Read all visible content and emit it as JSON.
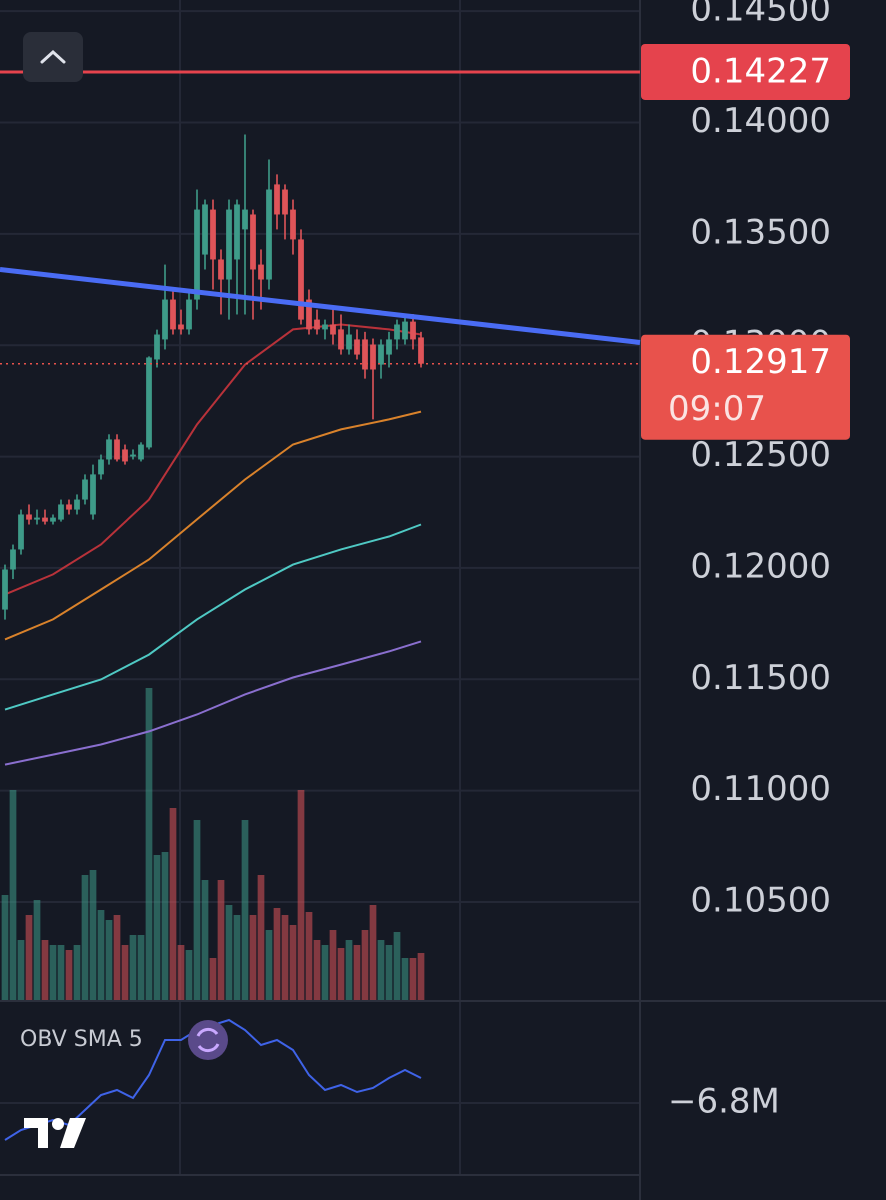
{
  "chart_data": {
    "type": "candlestick",
    "xlim": [
      -0.625,
      79.375
    ],
    "ylim": [
      0.1006,
      0.1455
    ],
    "yticks": [
      {
        "value": 0.145,
        "label": "0.14500"
      },
      {
        "value": 0.14,
        "label": "0.14000"
      },
      {
        "value": 0.135,
        "label": "0.13500"
      },
      {
        "value": 0.13,
        "label": "0.13000"
      },
      {
        "value": 0.125,
        "label": "0.12500"
      },
      {
        "value": 0.12,
        "label": "0.12000"
      },
      {
        "value": 0.115,
        "label": "0.11500"
      },
      {
        "value": 0.11,
        "label": "0.11000"
      },
      {
        "value": 0.105,
        "label": "0.10500"
      }
    ],
    "grid": true,
    "up_color": "#3e9b89",
    "down_color": "#df5459",
    "ohlc": [
      [
        0.11813,
        0.12015,
        0.11768,
        0.11993
      ],
      [
        0.11993,
        0.12105,
        0.1195,
        0.12083
      ],
      [
        0.12083,
        0.12262,
        0.1206,
        0.1224
      ],
      [
        0.1224,
        0.12285,
        0.12195,
        0.12217
      ],
      [
        0.12217,
        0.12262,
        0.12195,
        0.12226
      ],
      [
        0.12226,
        0.12262,
        0.12195,
        0.12208
      ],
      [
        0.12208,
        0.1224,
        0.12195,
        0.12226
      ],
      [
        0.12217,
        0.12307,
        0.12208,
        0.12285
      ],
      [
        0.12285,
        0.12307,
        0.1224,
        0.12262
      ],
      [
        0.12262,
        0.1233,
        0.1224,
        0.12307
      ],
      [
        0.12307,
        0.1242,
        0.12285,
        0.12397
      ],
      [
        0.1224,
        0.12464,
        0.12217,
        0.1242
      ],
      [
        0.1242,
        0.12509,
        0.12397,
        0.12487
      ],
      [
        0.12487,
        0.126,
        0.12464,
        0.12577
      ],
      [
        0.12577,
        0.126,
        0.12478,
        0.12487
      ],
      [
        0.12532,
        0.12554,
        0.12464,
        0.12478
      ],
      [
        0.125,
        0.12532,
        0.12487,
        0.12509
      ],
      [
        0.12487,
        0.12564,
        0.12478,
        0.12554
      ],
      [
        0.12541,
        0.1295,
        0.12532,
        0.12945
      ],
      [
        0.12936,
        0.1307,
        0.129,
        0.13048
      ],
      [
        0.13026,
        0.13362,
        0.12981,
        0.13205
      ],
      [
        0.13205,
        0.1325,
        0.13048,
        0.13071
      ],
      [
        0.13093,
        0.1316,
        0.13048,
        0.13071
      ],
      [
        0.13071,
        0.1325,
        0.13048,
        0.13205
      ],
      [
        0.13205,
        0.13699,
        0.1316,
        0.13609
      ],
      [
        0.13407,
        0.13654,
        0.1334,
        0.13632
      ],
      [
        0.13609,
        0.13654,
        0.1325,
        0.13385
      ],
      [
        0.13385,
        0.1343,
        0.13138,
        0.13295
      ],
      [
        0.13295,
        0.13654,
        0.13115,
        0.13609
      ],
      [
        0.13385,
        0.13654,
        0.13138,
        0.13632
      ],
      [
        0.1352,
        0.13946,
        0.13138,
        0.13609
      ],
      [
        0.13587,
        0.13609,
        0.13115,
        0.1334
      ],
      [
        0.13362,
        0.1343,
        0.1316,
        0.13295
      ],
      [
        0.13295,
        0.13834,
        0.1325,
        0.13699
      ],
      [
        0.13722,
        0.13767,
        0.1352,
        0.13587
      ],
      [
        0.13699,
        0.13722,
        0.13475,
        0.13587
      ],
      [
        0.13609,
        0.13654,
        0.13407,
        0.13475
      ],
      [
        0.13475,
        0.1352,
        0.13093,
        0.13115
      ],
      [
        0.13205,
        0.1325,
        0.13048,
        0.13071
      ],
      [
        0.13115,
        0.1316,
        0.13048,
        0.13071
      ],
      [
        0.13071,
        0.13115,
        0.13026,
        0.13093
      ],
      [
        0.13093,
        0.1316,
        0.13003,
        0.13048
      ],
      [
        0.13071,
        0.13138,
        0.12958,
        0.12981
      ],
      [
        0.12981,
        0.13093,
        0.12958,
        0.13048
      ],
      [
        0.13026,
        0.13071,
        0.12936,
        0.12958
      ],
      [
        0.13026,
        0.1306,
        0.1285,
        0.12891
      ],
      [
        0.13003,
        0.1303,
        0.12667,
        0.12891
      ],
      [
        0.12913,
        0.13026,
        0.1285,
        0.13003
      ],
      [
        0.12958,
        0.1306,
        0.129,
        0.13026
      ],
      [
        0.13026,
        0.13115,
        0.12981,
        0.13093
      ],
      [
        0.13026,
        0.1313,
        0.13003,
        0.13106
      ],
      [
        0.13106,
        0.1314,
        0.12981,
        0.13026
      ],
      [
        0.13035,
        0.1306,
        0.129,
        0.12917
      ]
    ],
    "ma_lines": [
      {
        "color": "#b8323a",
        "x": [
          0,
          6,
          12,
          18,
          24,
          30,
          36,
          42,
          48,
          52
        ],
        "values": [
          0.11881,
          0.11971,
          0.12105,
          0.12307,
          0.12644,
          0.12913,
          0.13071,
          0.13093,
          0.13071,
          0.13048
        ]
      },
      {
        "color": "#d9822b",
        "x": [
          0,
          6,
          12,
          18,
          24,
          30,
          36,
          42,
          48,
          52
        ],
        "values": [
          0.11679,
          0.11769,
          0.11903,
          0.12038,
          0.12218,
          0.12397,
          0.12554,
          0.12622,
          0.12667,
          0.12702
        ]
      },
      {
        "color": "#4fc9c4",
        "x": [
          0,
          6,
          12,
          18,
          24,
          30,
          36,
          42,
          48,
          52
        ],
        "values": [
          0.11364,
          0.11432,
          0.11499,
          0.11611,
          0.11769,
          0.11903,
          0.12015,
          0.12083,
          0.12141,
          0.12195
        ]
      },
      {
        "color": "#8a6fcf",
        "x": [
          0,
          6,
          12,
          18,
          24,
          30,
          36,
          42,
          48,
          52
        ],
        "values": [
          0.11117,
          0.11162,
          0.11207,
          0.11266,
          0.11342,
          0.11432,
          0.11508,
          0.11566,
          0.11625,
          0.1167
        ]
      }
    ],
    "trend_line": {
      "color": "#4a6cf4",
      "x": [
        -0.625,
        79.375
      ],
      "values": [
        0.1334,
        0.13012
      ]
    },
    "price_line": {
      "value": 0.14227,
      "color": "#e5434d"
    },
    "last_price": {
      "value": 0.12917,
      "countdown": "09:07",
      "color": "#e8524c"
    },
    "volume_lim": [
      0,
      330
    ],
    "volumes": [
      105,
      210,
      60,
      85,
      100,
      60,
      55,
      55,
      50,
      55,
      125,
      130,
      90,
      80,
      85,
      55,
      65,
      65,
      312,
      145,
      148,
      192,
      55,
      50,
      180,
      120,
      42,
      120,
      95,
      85,
      180,
      85,
      125,
      70,
      92,
      85,
      75,
      210,
      88,
      60,
      55,
      70,
      52,
      60,
      55,
      70,
      95,
      60,
      55,
      68,
      42,
      42,
      47
    ],
    "obv": {
      "label": "OBV SMA 5",
      "color": "#3f63e8",
      "ylim": [
        -8600000,
        -4225000
      ],
      "yticks": [
        {
          "value": -6800000,
          "label": "−6.8M"
        }
      ],
      "x": [
        0,
        2,
        4,
        6,
        8,
        10,
        12,
        14,
        16,
        18,
        20,
        22,
        24,
        26,
        28,
        30,
        32,
        34,
        36,
        38,
        40,
        42,
        44,
        46,
        48,
        50,
        52
      ],
      "values": [
        -7725000,
        -7475000,
        -7350000,
        -7225000,
        -7350000,
        -6975000,
        -6600000,
        -6475000,
        -6675000,
        -6100000,
        -5225000,
        -5225000,
        -4975000,
        -4850000,
        -4725000,
        -4975000,
        -5350000,
        -5225000,
        -5475000,
        -6100000,
        -6475000,
        -6350000,
        -6525000,
        -6425000,
        -6175000,
        -5975000,
        -6175000
      ]
    }
  }
}
